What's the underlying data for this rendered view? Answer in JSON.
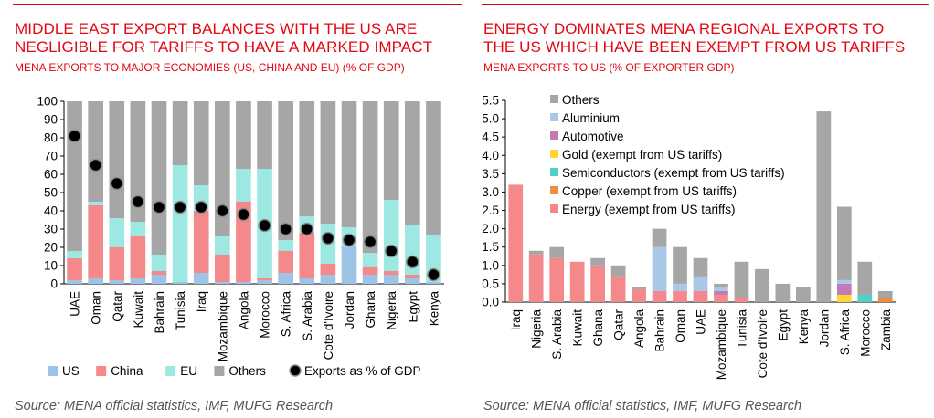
{
  "left": {
    "title_line1": "MIDDLE EAST EXPORT BALANCES WITH THE US ARE",
    "title_line2": "NEGLIGIBLE FOR TARIFFS TO HAVE A MARKED IMPACT",
    "subtitle": "MENA EXPORTS TO MAJOR ECONOMIES (US, CHINA AND EU) (% OF GDP)",
    "source": "Source: MENA official statistics, IMF, MUFG Research"
  },
  "right": {
    "title_line1": "ENERGY DOMINATES MENA REGIONAL EXPORTS TO",
    "title_line2": "THE US WHICH HAVE BEEN EXEMPT FROM US TARIFFS",
    "subtitle": "MENA EXPORTS TO US (% OF EXPORTER GDP)",
    "source": "Source: MENA official statistics, IMF, MUFG Research"
  },
  "colors": {
    "US": "#9dc3e6",
    "China": "#f4888a",
    "EU": "#9ee8e3",
    "Others": "#a6a6a6",
    "Aluminium": "#a9c8e8",
    "Automotive": "#c27bb7",
    "Gold": "#ffd633",
    "Semiconductors": "#4fd1c5",
    "Copper": "#f08c3c",
    "Energy": "#f4888a",
    "accent": "#e30613"
  },
  "chart_data": [
    {
      "type": "bar",
      "stacked": true,
      "categories": [
        "UAE",
        "Oman",
        "Qatar",
        "Kuwait",
        "Bahrain",
        "Tunisia",
        "Iraq",
        "Mozambique",
        "Angola",
        "Morocco",
        "S. Africa",
        "S. Arabia",
        "Cote d'Ivoire",
        "Jordan",
        "Ghana",
        "Nigeria",
        "Egypt",
        "Kenya"
      ],
      "series": [
        {
          "name": "US",
          "values": [
            2,
            3,
            2,
            3,
            5,
            1,
            6,
            1,
            1,
            2,
            6,
            3,
            5,
            21,
            5,
            5,
            3,
            1
          ]
        },
        {
          "name": "China",
          "values": [
            12,
            40,
            18,
            23,
            2,
            0,
            34,
            15,
            44,
            1,
            12,
            25,
            6,
            0,
            4,
            2,
            2,
            0
          ]
        },
        {
          "name": "EU",
          "values": [
            4,
            2,
            16,
            8,
            9,
            64,
            14,
            10,
            18,
            60,
            6,
            9,
            22,
            10,
            8,
            39,
            27,
            26
          ]
        },
        {
          "name": "Others",
          "values": [
            82,
            55,
            64,
            66,
            84,
            35,
            46,
            74,
            37,
            37,
            76,
            63,
            67,
            69,
            83,
            54,
            68,
            73
          ]
        }
      ],
      "dots": {
        "name": "Exports as % of GDP",
        "values": [
          81,
          65,
          55,
          45,
          42,
          42,
          42,
          40,
          38,
          32,
          30,
          30,
          25,
          24,
          23,
          18,
          12,
          5
        ]
      },
      "ylim": [
        0,
        100
      ],
      "yticks": [
        0,
        10,
        20,
        30,
        40,
        50,
        60,
        70,
        80,
        90,
        100
      ],
      "grid": false,
      "legend_position": "bottom"
    },
    {
      "type": "bar",
      "stacked": true,
      "categories": [
        "Iraq",
        "Nigeria",
        "S. Arabia",
        "Kuwait",
        "Ghana",
        "Qatar",
        "Angola",
        "Bahrain",
        "Oman",
        "UAE",
        "Mozambique",
        "Tunisia",
        "Cote d'Ivoire",
        "Egypt",
        "Kenya",
        "Jordan",
        "S. Africa",
        "Morocco",
        "Zambia"
      ],
      "series": [
        {
          "name": "Energy (exempt from US tariffs)",
          "values": [
            3.2,
            1.3,
            1.2,
            1.1,
            1.0,
            0.7,
            0.35,
            0.3,
            0.3,
            0.3,
            0.2,
            0.1,
            0,
            0,
            0,
            0,
            0,
            0,
            0
          ]
        },
        {
          "name": "Copper (exempt from US tariffs)",
          "values": [
            0,
            0,
            0,
            0,
            0,
            0,
            0,
            0,
            0,
            0,
            0,
            0,
            0,
            0,
            0,
            0,
            0,
            0,
            0.1
          ]
        },
        {
          "name": "Semiconductors (exempt from US tariffs)",
          "values": [
            0,
            0,
            0,
            0,
            0,
            0,
            0,
            0,
            0,
            0,
            0,
            0,
            0,
            0,
            0,
            0,
            0,
            0.2,
            0
          ]
        },
        {
          "name": "Gold (exempt from US tariffs)",
          "values": [
            0,
            0,
            0,
            0,
            0,
            0,
            0,
            0,
            0,
            0,
            0,
            0,
            0,
            0,
            0,
            0,
            0.2,
            0,
            0
          ]
        },
        {
          "name": "Automotive",
          "values": [
            0,
            0,
            0,
            0,
            0,
            0,
            0,
            0,
            0,
            0,
            0.1,
            0,
            0,
            0,
            0,
            0,
            0.3,
            0,
            0
          ]
        },
        {
          "name": "Aluminium",
          "values": [
            0,
            0,
            0,
            0,
            0,
            0,
            0,
            1.2,
            0.2,
            0.4,
            0.1,
            0,
            0,
            0,
            0,
            0,
            0.1,
            0,
            0
          ]
        },
        {
          "name": "Others",
          "values": [
            0,
            0.1,
            0.3,
            0,
            0.2,
            0.3,
            0.05,
            0.5,
            1.0,
            0.5,
            0.1,
            1.0,
            0.9,
            0.5,
            0.4,
            5.2,
            2.0,
            0.9,
            0.2
          ]
        }
      ],
      "legend_order": [
        "Others",
        "Aluminium",
        "Automotive",
        "Gold (exempt from US tariffs)",
        "Semiconductors (exempt from US tariffs)",
        "Copper (exempt from US tariffs)",
        "Energy (exempt from US tariffs)"
      ],
      "ylim": [
        0,
        5.5
      ],
      "yticks": [
        0,
        0.5,
        1.0,
        1.5,
        2.0,
        2.5,
        3.0,
        3.5,
        4.0,
        4.5,
        5.0,
        5.5
      ],
      "ytick_labels": [
        "0.0",
        "0.5",
        "1.0",
        "1.5",
        "2.0",
        "2.5",
        "3.0",
        "3.5",
        "4.0",
        "4.5",
        "5.0",
        "5.5"
      ],
      "grid": false,
      "legend_position": "top-left"
    }
  ]
}
